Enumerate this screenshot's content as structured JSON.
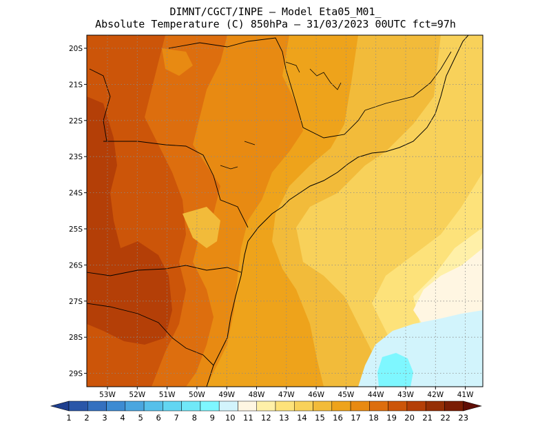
{
  "title_line1": "DIMNT/CGCT/INPE –  Model Eta05_M01_",
  "title_line2": "Absolute Temperature (C) 850hPa –  31/03/2023 00UTC fct=97h",
  "map": {
    "lat_labels": [
      "20S",
      "21S",
      "22S",
      "23S",
      "24S",
      "25S",
      "26S",
      "27S",
      "28S",
      "29S"
    ],
    "lon_labels": [
      "53W",
      "52W",
      "51W",
      "50W",
      "49W",
      "48W",
      "47W",
      "46W",
      "45W",
      "44W",
      "43W",
      "42W",
      "41W"
    ],
    "grid_lines": "dotted"
  },
  "colorbar": {
    "labels": [
      "1",
      "2",
      "3",
      "4",
      "5",
      "6",
      "7",
      "8",
      "9",
      "10",
      "11",
      "12",
      "13",
      "14",
      "15",
      "16",
      "17",
      "18",
      "19",
      "20",
      "21",
      "22",
      "23"
    ],
    "colors": [
      "#1f3f8f",
      "#2a56a8",
      "#3470bf",
      "#3d8bd2",
      "#4aa6df",
      "#56c0ea",
      "#62d6f2",
      "#70e8f8",
      "#7ef7ff",
      "#d2f4fc",
      "#fff6e2",
      "#fff0a8",
      "#fde27a",
      "#f8d15a",
      "#f2bb3a",
      "#eea31b",
      "#e88a12",
      "#dd6e0e",
      "#cc5509",
      "#b43f07",
      "#952f05",
      "#7a1d04",
      "#5f0d05"
    ]
  },
  "legend_colors": {
    "t11": "#fff6e2",
    "t12": "#fff0a8",
    "t13": "#fde27a",
    "t14": "#f8d15a",
    "t15": "#f2bb3a",
    "t16": "#eea31b",
    "t17": "#e88a12",
    "t18": "#dd6e0e",
    "t19": "#cc5509",
    "t20": "#b43f07",
    "t10": "#d2f4fc",
    "t9": "#7ef7ff"
  }
}
